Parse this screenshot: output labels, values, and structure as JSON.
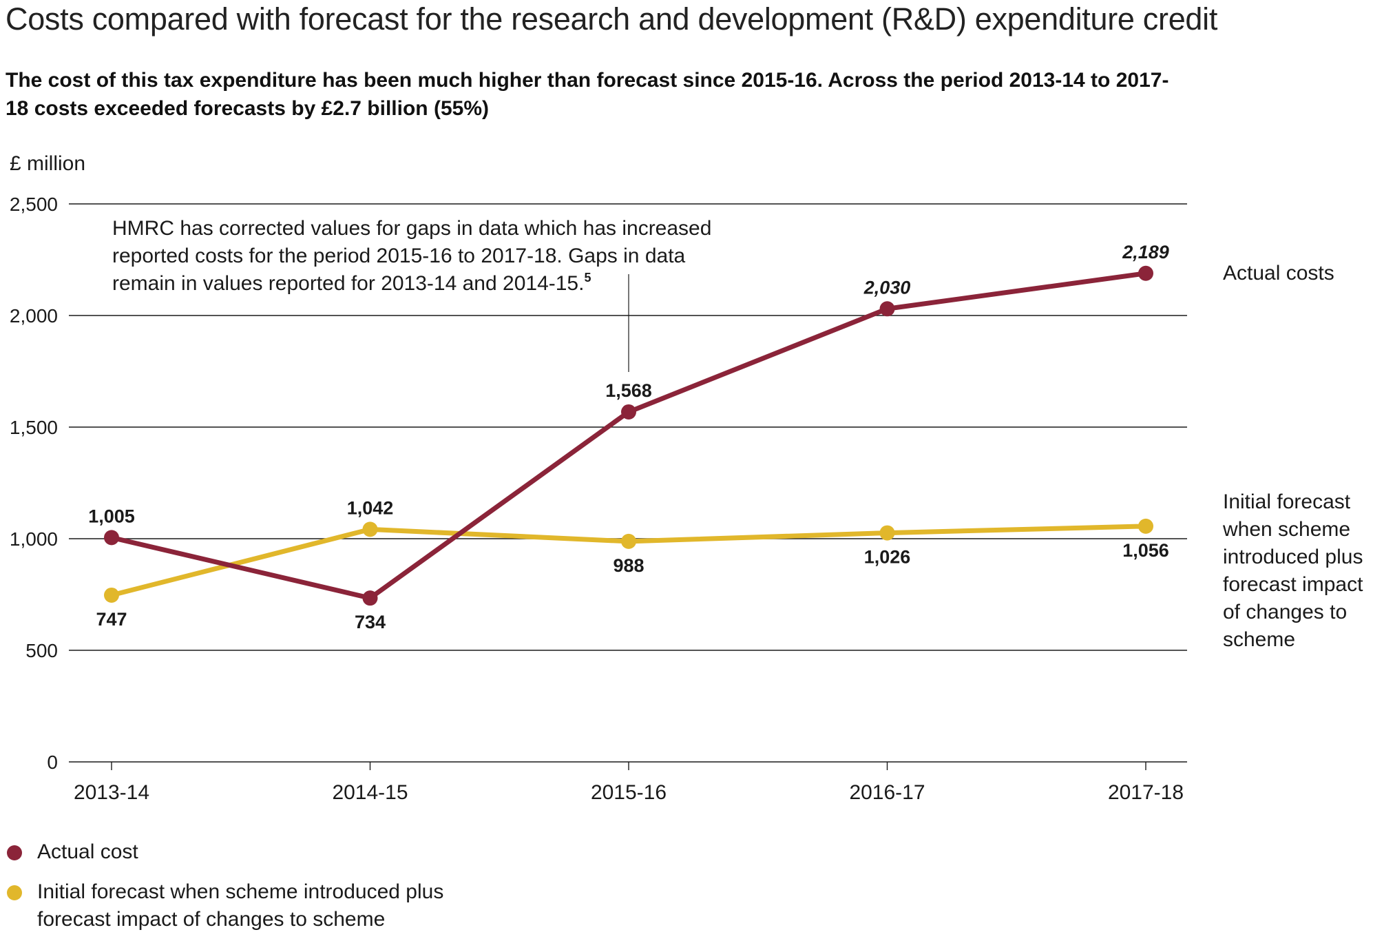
{
  "header": {
    "title": "Costs compared with forecast for the research and development (R&D) expenditure credit",
    "subtitle": "The cost of this tax expenditure has been much higher than forecast since 2015-16. Across the period 2013-14 to 2017-18 costs exceeded forecasts by £2.7 billion (55%)"
  },
  "chart_data": {
    "type": "line",
    "ylabel": "£ million",
    "xlabel": "",
    "ylim": [
      0,
      2500
    ],
    "yticks": [
      0,
      500,
      1000,
      1500,
      2000,
      2500
    ],
    "ytick_labels": [
      "0",
      "500",
      "1,000",
      "1,500",
      "2,000",
      "2,500"
    ],
    "categories": [
      "2013-14",
      "2014-15",
      "2015-16",
      "2016-17",
      "2017-18"
    ],
    "grid": true,
    "series": [
      {
        "name": "Actual cost",
        "end_label": "Actual costs",
        "color": "#8b2439",
        "values": [
          1005,
          734,
          1568,
          2030,
          2189
        ],
        "labels": [
          "1,005",
          "734",
          "1,568",
          "2,030",
          "2,189"
        ],
        "label_positions": [
          "above",
          "below",
          "above",
          "above",
          "above"
        ],
        "label_italic": [
          false,
          false,
          false,
          true,
          true
        ]
      },
      {
        "name": "Initial forecast when scheme introduced plus forecast impact of changes to scheme",
        "end_label_lines": [
          "Initial forecast",
          "when scheme",
          "introduced plus",
          "forecast impact",
          "of changes to",
          "scheme"
        ],
        "color": "#e1b72b",
        "values": [
          747,
          1042,
          988,
          1026,
          1056
        ],
        "labels": [
          "747",
          "1,042",
          "988",
          "1,026",
          "1,056"
        ],
        "label_positions": [
          "below",
          "above",
          "below",
          "below",
          "below"
        ],
        "label_italic": [
          false,
          false,
          false,
          false,
          false
        ]
      }
    ],
    "annotation": {
      "lines": [
        "HMRC has corrected values for gaps in data which has increased",
        "reported costs for the period 2015-16 to 2017-18. Gaps in data",
        "remain in values reported for 2013-14 and 2014-15."
      ],
      "superscript": "5",
      "points_to": "2015-16"
    },
    "legend_position": "bottom-left"
  },
  "legend": [
    {
      "label": "Actual cost",
      "color": "#8b2439"
    },
    {
      "label": "Initial forecast when scheme introduced plus forecast impact of changes to scheme",
      "color": "#e1b72b"
    }
  ]
}
